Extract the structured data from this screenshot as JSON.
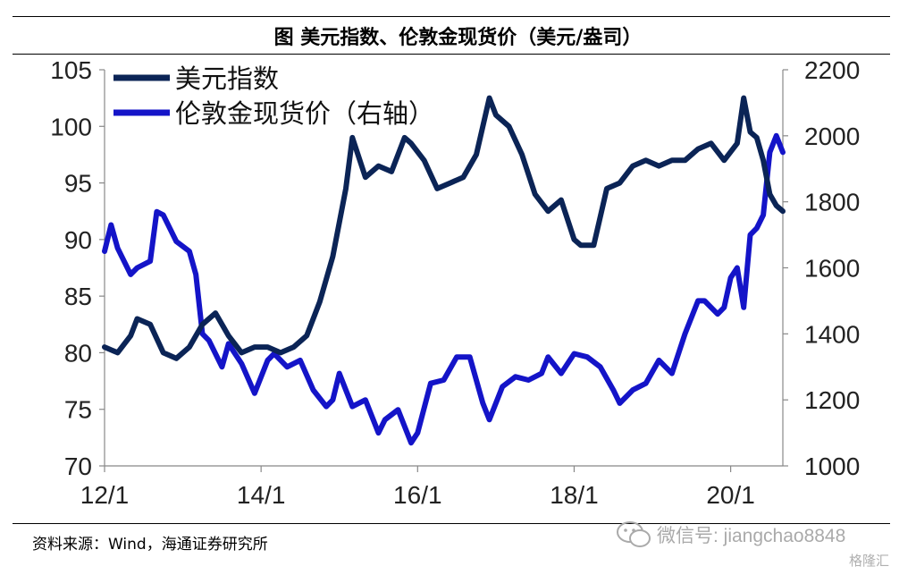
{
  "chart_data": {
    "type": "line",
    "title": "图  美元指数、伦敦金现货价（美元/盎司）",
    "source": "资料来源：Wind，海通证券研究所",
    "x_ticks": [
      "12/1",
      "14/1",
      "16/1",
      "18/1",
      "20/1"
    ],
    "xlim": [
      "2012-01",
      "2020-09"
    ],
    "y_left": {
      "ticks": [
        70,
        75,
        80,
        85,
        90,
        95,
        100,
        105
      ],
      "lim": [
        70,
        105
      ]
    },
    "y_right": {
      "ticks": [
        1000,
        1200,
        1400,
        1600,
        1800,
        2000,
        2200
      ],
      "lim": [
        1000,
        2200
      ]
    },
    "legend_position": "top-left",
    "grid": false,
    "series": [
      {
        "name": "美元指数",
        "axis": "left",
        "color": "#0b2456",
        "x": [
          "2012-01",
          "2012-03",
          "2012-05",
          "2012-06",
          "2012-08",
          "2012-10",
          "2012-12",
          "2013-02",
          "2013-04",
          "2013-06",
          "2013-08",
          "2013-10",
          "2013-12",
          "2014-02",
          "2014-04",
          "2014-06",
          "2014-08",
          "2014-10",
          "2014-12",
          "2015-02",
          "2015-03",
          "2015-05",
          "2015-07",
          "2015-09",
          "2015-11",
          "2015-12",
          "2016-02",
          "2016-04",
          "2016-06",
          "2016-08",
          "2016-10",
          "2016-12",
          "2017-01",
          "2017-03",
          "2017-05",
          "2017-07",
          "2017-09",
          "2017-11",
          "2018-01",
          "2018-02",
          "2018-04",
          "2018-06",
          "2018-08",
          "2018-10",
          "2018-12",
          "2019-02",
          "2019-04",
          "2019-06",
          "2019-08",
          "2019-10",
          "2019-12",
          "2020-02",
          "2020-03",
          "2020-04",
          "2020-05",
          "2020-06",
          "2020-07",
          "2020-08",
          "2020-09"
        ],
        "y": [
          80.5,
          80.0,
          81.5,
          83.0,
          82.5,
          80.0,
          79.5,
          80.5,
          82.5,
          83.5,
          81.5,
          80.0,
          80.5,
          80.5,
          80.0,
          80.5,
          81.5,
          84.5,
          88.5,
          94.5,
          99.0,
          95.5,
          96.5,
          96.0,
          99.0,
          98.5,
          97.0,
          94.5,
          95.0,
          95.5,
          97.5,
          102.5,
          101.0,
          100.0,
          97.5,
          94.0,
          92.5,
          93.5,
          90.0,
          89.5,
          89.5,
          94.5,
          95.0,
          96.5,
          97.0,
          96.5,
          97.0,
          97.0,
          98.0,
          98.5,
          97.0,
          98.5,
          102.5,
          99.5,
          99.0,
          97.0,
          94.0,
          93.0,
          92.5
        ]
      },
      {
        "name": "伦敦金现货价（右轴）",
        "axis": "right",
        "color": "#1414c8",
        "x": [
          "2012-01",
          "2012-02",
          "2012-03",
          "2012-05",
          "2012-06",
          "2012-08",
          "2012-09",
          "2012-10",
          "2012-12",
          "2013-02",
          "2013-03",
          "2013-04",
          "2013-05",
          "2013-07",
          "2013-08",
          "2013-10",
          "2013-12",
          "2014-02",
          "2014-03",
          "2014-05",
          "2014-07",
          "2014-09",
          "2014-11",
          "2014-12",
          "2015-01",
          "2015-03",
          "2015-05",
          "2015-07",
          "2015-08",
          "2015-10",
          "2015-12",
          "2016-01",
          "2016-03",
          "2016-05",
          "2016-07",
          "2016-09",
          "2016-11",
          "2016-12",
          "2017-02",
          "2017-04",
          "2017-06",
          "2017-08",
          "2017-09",
          "2017-11",
          "2018-01",
          "2018-03",
          "2018-05",
          "2018-07",
          "2018-08",
          "2018-10",
          "2018-12",
          "2019-02",
          "2019-04",
          "2019-06",
          "2019-08",
          "2019-09",
          "2019-11",
          "2019-12",
          "2020-01",
          "2020-02",
          "2020-03",
          "2020-04",
          "2020-05",
          "2020-06",
          "2020-07",
          "2020-08",
          "2020-09"
        ],
        "y": [
          1650,
          1730,
          1660,
          1580,
          1600,
          1620,
          1770,
          1760,
          1680,
          1650,
          1580,
          1400,
          1380,
          1300,
          1370,
          1310,
          1220,
          1320,
          1340,
          1300,
          1320,
          1230,
          1180,
          1200,
          1280,
          1180,
          1200,
          1100,
          1140,
          1170,
          1070,
          1100,
          1250,
          1260,
          1330,
          1330,
          1190,
          1140,
          1240,
          1270,
          1260,
          1280,
          1330,
          1280,
          1340,
          1330,
          1300,
          1230,
          1190,
          1230,
          1250,
          1320,
          1280,
          1400,
          1500,
          1500,
          1460,
          1480,
          1570,
          1600,
          1480,
          1700,
          1720,
          1760,
          1950,
          2000,
          1950
        ]
      }
    ]
  }
}
